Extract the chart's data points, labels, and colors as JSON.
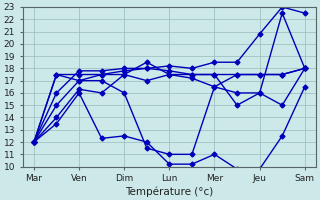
{
  "xlabel": "Température (°c)",
  "xlabels": [
    "Mar",
    "Ven",
    "Dim",
    "Lun",
    "Mer",
    "Jeu",
    "Sam"
  ],
  "xtick_positions": [
    0,
    2,
    4,
    6,
    8,
    10,
    12
  ],
  "ylim": [
    10,
    23
  ],
  "yticks": [
    10,
    11,
    12,
    13,
    14,
    15,
    16,
    17,
    18,
    19,
    20,
    21,
    22,
    23
  ],
  "background_color": "#cce8e8",
  "grid_color": "#99bbbb",
  "line_color": "#0000bb",
  "marker": "D",
  "markersize": 2.5,
  "linewidth": 1.0,
  "lines": [
    [
      12.0,
      17.5,
      17.5,
      17.5,
      17.8,
      18.0,
      17.8,
      17.5,
      17.5,
      17.5,
      17.5,
      17.5,
      18.0
    ],
    [
      12.0,
      14.0,
      16.3,
      16.0,
      17.5,
      17.0,
      17.5,
      17.2,
      16.5,
      17.5,
      17.5,
      17.5,
      18.0
    ],
    [
      12.0,
      13.5,
      16.0,
      12.3,
      12.5,
      12.0,
      10.2,
      10.2,
      11.0,
      9.8,
      9.8,
      12.5,
      16.5
    ],
    [
      12.0,
      16.0,
      17.8,
      17.8,
      18.0,
      18.0,
      18.2,
      18.0,
      18.5,
      18.5,
      20.8,
      23.0,
      22.5
    ],
    [
      12.0,
      15.0,
      17.0,
      17.0,
      16.0,
      11.5,
      11.0,
      11.0,
      16.5,
      16.0,
      16.0,
      22.5,
      18.0
    ],
    [
      12.0,
      17.5,
      17.0,
      17.5,
      17.5,
      18.5,
      17.5,
      17.5,
      17.5,
      15.0,
      16.0,
      15.0,
      18.0
    ]
  ]
}
